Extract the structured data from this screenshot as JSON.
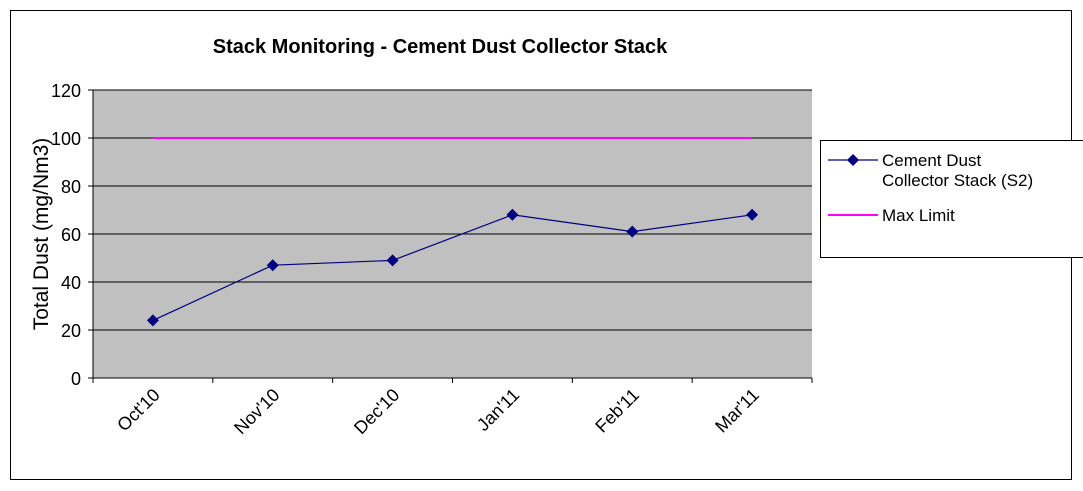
{
  "chart_data": {
    "type": "line",
    "title": "Stack Monitoring - Cement Dust Collector Stack",
    "y_label": "Total Dust (mg/Nm3)",
    "categories": [
      "Oct'10",
      "Nov'10",
      "Dec'10",
      "Jan'11",
      "Feb'11",
      "Mar'11"
    ],
    "series": [
      {
        "name": "Cement Dust Collector Stack (S2)",
        "color": "#000080",
        "values": [
          24,
          47,
          49,
          68,
          61,
          68
        ]
      },
      {
        "name": "Max Limit",
        "color": "#ff00ff",
        "values": [
          100,
          100,
          100,
          100,
          100,
          100
        ]
      }
    ],
    "ylim": [
      0,
      120
    ],
    "yticks": [
      0,
      20,
      40,
      60,
      80,
      100,
      120
    ],
    "grid": true,
    "legend": "right"
  }
}
